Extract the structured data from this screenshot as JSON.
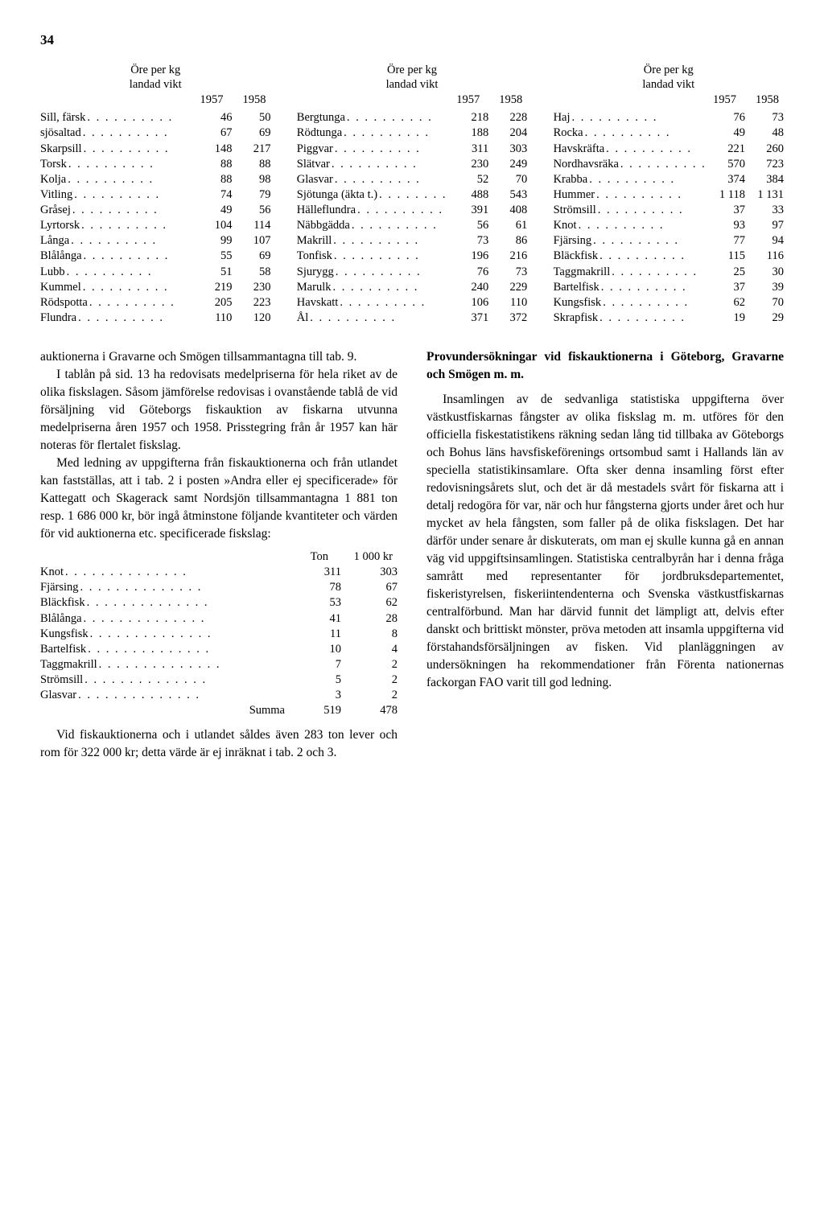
{
  "pageNumber": "34",
  "priceHeader1": "Öre per kg",
  "priceHeader2": "landad vikt",
  "year1": "1957",
  "year2": "1958",
  "col1": [
    {
      "label": "Sill, färsk",
      "v1": "46",
      "v2": "50"
    },
    {
      "label": "     sjösaltad",
      "v1": "67",
      "v2": "69"
    },
    {
      "label": "Skarpsill",
      "v1": "148",
      "v2": "217"
    },
    {
      "label": "Torsk",
      "v1": "88",
      "v2": "88"
    },
    {
      "label": "Kolja",
      "v1": "88",
      "v2": "98"
    },
    {
      "label": "Vitling",
      "v1": "74",
      "v2": "79"
    },
    {
      "label": "Gråsej",
      "v1": "49",
      "v2": "56"
    },
    {
      "label": "Lyrtorsk",
      "v1": "104",
      "v2": "114"
    },
    {
      "label": "Långa",
      "v1": "99",
      "v2": "107"
    },
    {
      "label": "Blålånga",
      "v1": "55",
      "v2": "69"
    },
    {
      "label": "Lubb",
      "v1": "51",
      "v2": "58"
    },
    {
      "label": "Kummel",
      "v1": "219",
      "v2": "230"
    },
    {
      "label": "Rödspotta",
      "v1": "205",
      "v2": "223"
    },
    {
      "label": "Flundra",
      "v1": "110",
      "v2": "120"
    }
  ],
  "col2": [
    {
      "label": "Bergtunga",
      "v1": "218",
      "v2": "228"
    },
    {
      "label": "Rödtunga",
      "v1": "188",
      "v2": "204"
    },
    {
      "label": "Piggvar",
      "v1": "311",
      "v2": "303"
    },
    {
      "label": "Slätvar",
      "v1": "230",
      "v2": "249"
    },
    {
      "label": "Glasvar",
      "v1": "52",
      "v2": "70"
    },
    {
      "label": "Sjötunga (äkta t.)",
      "v1": "488",
      "v2": "543"
    },
    {
      "label": "Hälleflundra",
      "v1": "391",
      "v2": "408"
    },
    {
      "label": "Näbbgädda",
      "v1": "56",
      "v2": "61"
    },
    {
      "label": "Makrill",
      "v1": "73",
      "v2": "86"
    },
    {
      "label": "Tonfisk",
      "v1": "196",
      "v2": "216"
    },
    {
      "label": "Sjurygg",
      "v1": "76",
      "v2": "73"
    },
    {
      "label": "Marulk",
      "v1": "240",
      "v2": "229"
    },
    {
      "label": "Havskatt",
      "v1": "106",
      "v2": "110"
    },
    {
      "label": "Ål",
      "v1": "371",
      "v2": "372"
    }
  ],
  "col3": [
    {
      "label": "Haj",
      "v1": "76",
      "v2": "73"
    },
    {
      "label": "Rocka",
      "v1": "49",
      "v2": "48"
    },
    {
      "label": "Havskräfta",
      "v1": "221",
      "v2": "260"
    },
    {
      "label": "Nordhavsräka",
      "v1": "570",
      "v2": "723"
    },
    {
      "label": "Krabba",
      "v1": "374",
      "v2": "384"
    },
    {
      "label": "Hummer",
      "v1": "1 118",
      "v2": "1 131"
    },
    {
      "label": "Strömsill",
      "v1": "37",
      "v2": "33"
    },
    {
      "label": "Knot",
      "v1": "93",
      "v2": "97"
    },
    {
      "label": "Fjärsing",
      "v1": "77",
      "v2": "94"
    },
    {
      "label": "Bläckfisk",
      "v1": "115",
      "v2": "116"
    },
    {
      "label": "Taggmakrill",
      "v1": "25",
      "v2": "30"
    },
    {
      "label": "Bartelfisk",
      "v1": "37",
      "v2": "39"
    },
    {
      "label": "Kungsfisk",
      "v1": "62",
      "v2": "70"
    },
    {
      "label": "Skrapfisk",
      "v1": "19",
      "v2": "29"
    }
  ],
  "leftParas": [
    "auktionerna i Gravarne och Smögen tillsammantagna till tab. 9.",
    "I tablån på sid. 13 ha redovisats medelpriserna för hela riket av de olika fiskslagen. Såsom jämförelse redovisas i ovanstående tablå de vid försäljning vid Göteborgs fiskauktion av fiskarna utvunna medelpriserna åren 1957 och 1958. Prisstegring från år 1957 kan här noteras för flertalet fiskslag.",
    "Med ledning av uppgifterna från fiskauktionerna och från utlandet kan fastställas, att i tab. 2 i posten »Andra eller ej specificerade» för Kattegatt och Skagerack samt Nordsjön tillsammantagna 1 881 ton resp. 1 686 000 kr, bör ingå åtminstone följande kvantiteter och värden för vid auktionerna etc. specificerade fiskslag:"
  ],
  "smallHeader": {
    "ton": "Ton",
    "kr": "1 000 kr"
  },
  "smallRows": [
    {
      "label": "Knot",
      "v1": "311",
      "v2": "303"
    },
    {
      "label": "Fjärsing",
      "v1": "78",
      "v2": "67"
    },
    {
      "label": "Bläckfisk",
      "v1": "53",
      "v2": "62"
    },
    {
      "label": "Blålånga",
      "v1": "41",
      "v2": "28"
    },
    {
      "label": "Kungsfisk",
      "v1": "11",
      "v2": "8"
    },
    {
      "label": "Bartelfisk",
      "v1": "10",
      "v2": "4"
    },
    {
      "label": "Taggmakrill",
      "v1": "7",
      "v2": "2"
    },
    {
      "label": "Strömsill",
      "v1": "5",
      "v2": "2"
    },
    {
      "label": "Glasvar",
      "v1": "3",
      "v2": "2"
    }
  ],
  "smallSumma": {
    "label": "Summa",
    "v1": "519",
    "v2": "478"
  },
  "leftPara4": "Vid fiskauktionerna och i utlandet såldes även 283 ton lever och rom för 322 000 kr; detta värde är ej inräknat i tab. 2 och 3.",
  "rightHeading": "Provundersökningar vid fiskauktionerna i Göteborg, Gravarne och Smögen m. m.",
  "rightPara": "Insamlingen av de sedvanliga statistiska uppgifterna över västkustfiskarnas fångster av olika fiskslag m. m. utföres för den officiella fiskestatistikens räkning sedan lång tid tillbaka av Göteborgs och Bohus läns havsfiskeförenings ortsombud samt i Hallands län av speciella statistikinsamlare. Ofta sker denna insamling först efter redovisningsårets slut, och det är då mestadels svårt för fiskarna att i detalj redogöra för var, när och hur fångsterna gjorts under året och hur mycket av hela fångsten, som faller på de olika fiskslagen. Det har därför under senare år diskuterats, om man ej skulle kunna gå en annan väg vid uppgiftsinsamlingen. Statistiska centralbyrån har i denna fråga samrått med representanter för jordbruksdepartementet, fiskeristyrelsen, fiskeriintendenterna och Svenska västkustfiskarnas centralförbund. Man har därvid funnit det lämpligt att, delvis efter danskt och brittiskt mönster, pröva metoden att insamla uppgifterna vid förstahandsförsäljningen av fisken. Vid planläggningen av undersökningen ha rekommendationer från Förenta nationernas fackorgan FAO varit till god ledning."
}
